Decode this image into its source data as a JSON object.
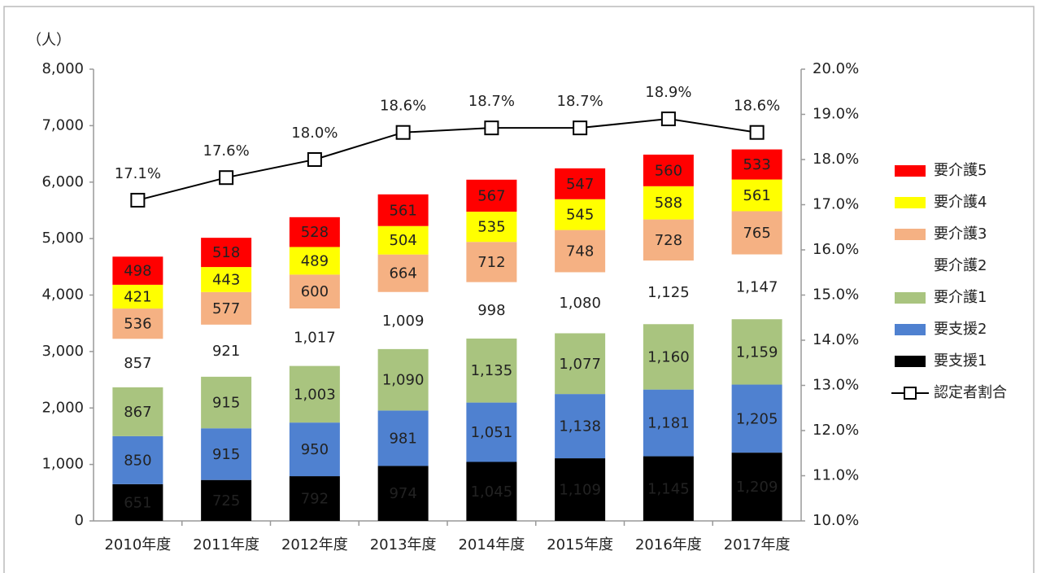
{
  "chart_data": {
    "type": "bar",
    "stacked": true,
    "ylabel": "（人）",
    "categories": [
      "2010年度",
      "2011年度",
      "2012年度",
      "2013年度",
      "2014年度",
      "2015年度",
      "2016年度",
      "2017年度"
    ],
    "series": [
      {
        "name": "要支援1",
        "color": "#000000",
        "values": [
          651,
          725,
          792,
          974,
          1045,
          1109,
          1145,
          1209
        ],
        "value_labels": [
          "651",
          "725",
          "792",
          "974",
          "1,045",
          "1,109",
          "1,145",
          "1,209"
        ]
      },
      {
        "name": "要支援2",
        "color": "#4f81d0",
        "values": [
          850,
          915,
          950,
          981,
          1051,
          1138,
          1181,
          1205
        ],
        "value_labels": [
          "850",
          "915",
          "950",
          "981",
          "1,051",
          "1,138",
          "1,181",
          "1,205"
        ]
      },
      {
        "name": "要介護1",
        "color": "#a9c47f",
        "values": [
          867,
          915,
          1003,
          1090,
          1135,
          1077,
          1160,
          1159
        ],
        "value_labels": [
          "867",
          "915",
          "1,003",
          "1,090",
          "1,135",
          "1,077",
          "1,160",
          "1,159"
        ]
      },
      {
        "name": "要介護2",
        "color": "#ffffff",
        "values": [
          857,
          921,
          1017,
          1009,
          998,
          1080,
          1125,
          1147
        ],
        "value_labels": [
          "857",
          "921",
          "1,017",
          "1,009",
          "998",
          "1,080",
          "1,125",
          "1,147"
        ]
      },
      {
        "name": "要介護3",
        "color": "#f5b183",
        "values": [
          536,
          577,
          600,
          664,
          712,
          748,
          728,
          765
        ]
      },
      {
        "name": "要介護4",
        "color": "#ffff00",
        "values": [
          421,
          443,
          489,
          504,
          535,
          545,
          588,
          561
        ]
      },
      {
        "name": "要介護5",
        "color": "#ff0000",
        "values": [
          498,
          518,
          528,
          561,
          567,
          547,
          560,
          533
        ]
      },
      {
        "name": "認定者割合",
        "color": "#000000",
        "type": "line",
        "axis": "y2",
        "values": [
          17.1,
          17.6,
          18.0,
          18.6,
          18.7,
          18.7,
          18.9,
          18.6
        ],
        "value_labels": [
          "17.1%",
          "17.6%",
          "18.0%",
          "18.6%",
          "18.7%",
          "18.7%",
          "18.9%",
          "18.6%"
        ]
      }
    ],
    "ylim": [
      0,
      8000
    ],
    "yticks": [
      0,
      {
        "value": 1000,
        "label": "1,000"
      },
      {
        "value": 2000,
        "label": "2,000"
      },
      {
        "value": 3000,
        "label": "3,000"
      },
      {
        "value": 4000,
        "label": "4,000"
      },
      {
        "value": 5000,
        "label": "5,000"
      },
      {
        "value": 6000,
        "label": "6,000"
      },
      {
        "value": 7000,
        "label": "7,000"
      },
      {
        "value": 8000,
        "label": "8,000"
      }
    ],
    "y2lim": [
      10,
      20
    ],
    "y2ticks": [
      {
        "value": 10,
        "label": "10.0%"
      },
      {
        "value": 11,
        "label": "11.0%"
      },
      {
        "value": 12,
        "label": "12.0%"
      },
      {
        "value": 13,
        "label": "13.0%"
      },
      {
        "value": 14,
        "label": "14.0%"
      },
      {
        "value": 15,
        "label": "15.0%"
      },
      {
        "value": 16,
        "label": "16.0%"
      },
      {
        "value": 17,
        "label": "17.0%"
      },
      {
        "value": 18,
        "label": "18.0%"
      },
      {
        "value": 19,
        "label": "19.0%"
      },
      {
        "value": 20,
        "label": "20.0%"
      }
    ],
    "grid": false,
    "legend": "right"
  }
}
